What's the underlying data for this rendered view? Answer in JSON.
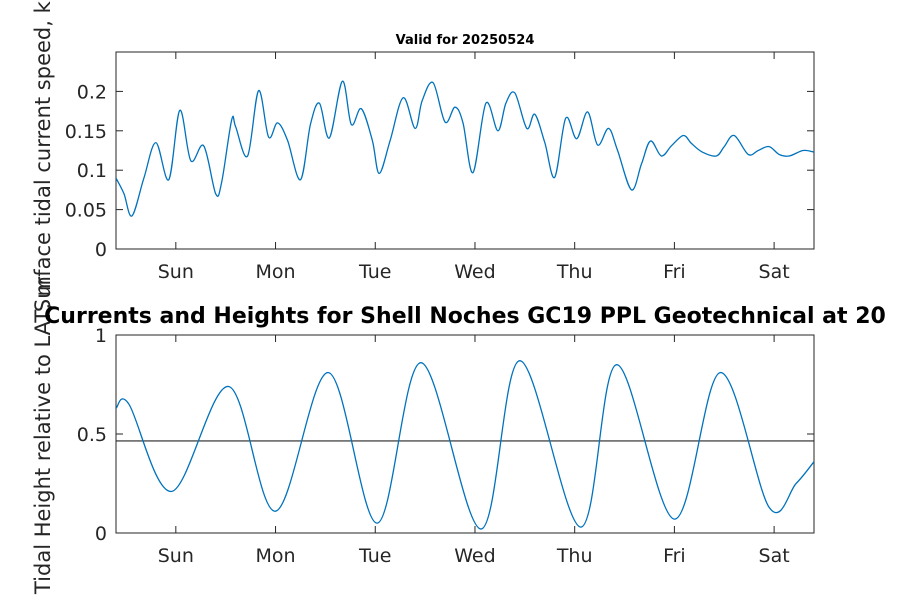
{
  "chart_data": [
    {
      "type": "line",
      "title": "Valid for 20250524",
      "ylabel": "Surface tidal current speed, kn",
      "xlabel": "",
      "ylim": [
        0,
        0.25
      ],
      "xlim": [
        0,
        7
      ],
      "yticks": [
        0,
        0.05,
        0.1,
        0.15,
        0.2
      ],
      "ytick_labels": [
        "0",
        "0.05",
        "0.1",
        "0.15",
        "0.2"
      ],
      "xticks": [
        0.6,
        1.6,
        2.6,
        3.6,
        4.6,
        5.6,
        6.6
      ],
      "xtick_labels": [
        "Sun",
        "Mon",
        "Tue",
        "Wed",
        "Thu",
        "Fri",
        "Sat"
      ],
      "grid": false,
      "series": [
        {
          "color": "#0072BD",
          "x": [
            0.0,
            0.08,
            0.16,
            0.28,
            0.4,
            0.53,
            0.64,
            0.75,
            0.88,
            1.0,
            1.06,
            1.16,
            1.2,
            1.32,
            1.43,
            1.53,
            1.62,
            1.72,
            1.85,
            1.95,
            2.04,
            2.14,
            2.27,
            2.36,
            2.46,
            2.57,
            2.64,
            2.75,
            2.88,
            3.0,
            3.07,
            3.18,
            3.3,
            3.4,
            3.48,
            3.58,
            3.71,
            3.83,
            3.91,
            4.0,
            4.12,
            4.2,
            4.3,
            4.4,
            4.51,
            4.62,
            4.73,
            4.83,
            4.94,
            5.03,
            5.17,
            5.27,
            5.36,
            5.47,
            5.57,
            5.69,
            5.77,
            5.88,
            6.02,
            6.1,
            6.2,
            6.34,
            6.44,
            6.55,
            6.65,
            6.75,
            6.89,
            7.0
          ],
          "y": [
            0.09,
            0.07,
            0.042,
            0.09,
            0.135,
            0.088,
            0.176,
            0.112,
            0.131,
            0.07,
            0.085,
            0.164,
            0.155,
            0.118,
            0.201,
            0.142,
            0.16,
            0.138,
            0.088,
            0.158,
            0.185,
            0.141,
            0.213,
            0.158,
            0.178,
            0.138,
            0.096,
            0.138,
            0.192,
            0.153,
            0.188,
            0.211,
            0.161,
            0.18,
            0.16,
            0.097,
            0.185,
            0.15,
            0.185,
            0.198,
            0.153,
            0.171,
            0.135,
            0.091,
            0.166,
            0.14,
            0.174,
            0.132,
            0.153,
            0.125,
            0.075,
            0.108,
            0.137,
            0.118,
            0.131,
            0.144,
            0.134,
            0.123,
            0.118,
            0.13,
            0.144,
            0.12,
            0.125,
            0.13,
            0.12,
            0.118,
            0.125,
            0.123
          ]
        }
      ]
    },
    {
      "type": "line",
      "title": "Currents and Heights for Shell Noches   GC19 PPL  Geotechnical at 20",
      "ylabel": "Tidal Height relative to LAT, m",
      "xlabel": "",
      "ylim": [
        0,
        1
      ],
      "xlim": [
        0,
        7
      ],
      "yticks": [
        0,
        0.5,
        1
      ],
      "ytick_labels": [
        "0",
        "0.5",
        "1"
      ],
      "xticks": [
        0.6,
        1.6,
        2.6,
        3.6,
        4.6,
        5.6,
        6.6
      ],
      "xtick_labels": [
        "Sun",
        "Mon",
        "Tue",
        "Wed",
        "Thu",
        "Fri",
        "Sat"
      ],
      "grid": false,
      "reference_line": 0.465,
      "series": [
        {
          "color": "#0072BD",
          "x": [
            0.0,
            0.13,
            0.56,
            1.13,
            1.6,
            2.13,
            2.62,
            3.06,
            3.66,
            4.05,
            4.66,
            5.02,
            5.6,
            6.06,
            6.55,
            6.82,
            7.0
          ],
          "y": [
            0.63,
            0.65,
            0.21,
            0.74,
            0.11,
            0.81,
            0.05,
            0.86,
            0.02,
            0.87,
            0.03,
            0.85,
            0.07,
            0.81,
            0.13,
            0.25,
            0.36
          ]
        }
      ]
    }
  ]
}
